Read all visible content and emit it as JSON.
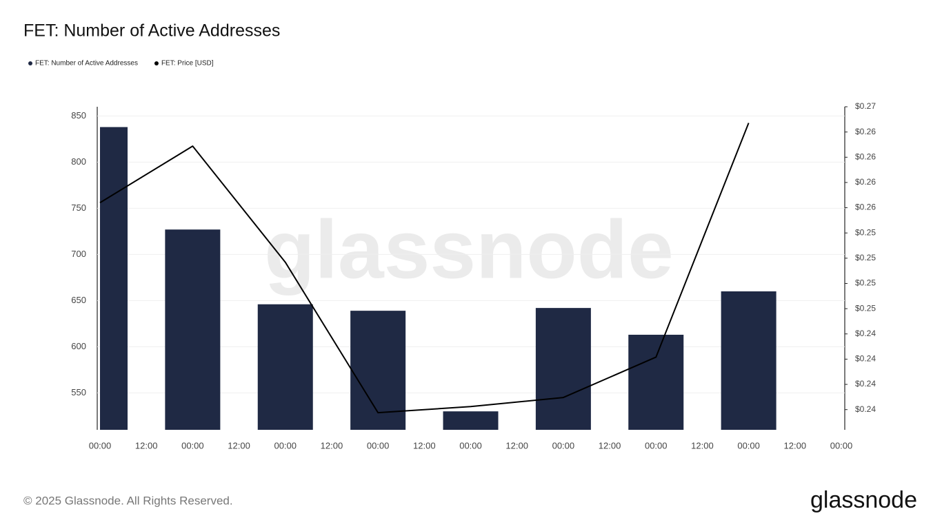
{
  "chart_data": {
    "type": "bar_line",
    "title": "FET: Number of Active Addresses",
    "watermark": "glassnode",
    "footer": "© 2025 Glassnode. All Rights Reserved.",
    "logo": "glassnode",
    "xticks": [
      "00:00",
      "12:00",
      "00:00",
      "12:00",
      "00:00",
      "12:00",
      "00:00",
      "12:00",
      "00:00",
      "12:00",
      "00:00",
      "12:00",
      "00:00",
      "12:00",
      "00:00",
      "12:00",
      "00:00"
    ],
    "series": [
      {
        "name": "FET: Number of Active Addresses",
        "type": "bar",
        "color": "#1f2944",
        "axis": "y",
        "values": [
          838,
          727,
          646,
          639,
          530,
          642,
          613,
          660
        ]
      },
      {
        "name": "FET: Price [USD]",
        "type": "line",
        "color": "#000000",
        "axis": "y2",
        "values": [
          0.2555,
          0.2611,
          0.2496,
          0.2347,
          0.2353,
          0.2362,
          0.2402,
          0.2634
        ]
      }
    ],
    "ylim": [
      510,
      860
    ],
    "yticks": [
      550,
      600,
      650,
      700,
      750,
      800,
      850
    ],
    "y2lim": [
      0.233,
      0.265
    ],
    "y2ticks": [
      {
        "value": 0.265,
        "label": "$0.27"
      },
      {
        "value": 0.2625,
        "label": "$0.26"
      },
      {
        "value": 0.26,
        "label": "$0.26"
      },
      {
        "value": 0.2575,
        "label": "$0.26"
      },
      {
        "value": 0.255,
        "label": "$0.26"
      },
      {
        "value": 0.2525,
        "label": "$0.25"
      },
      {
        "value": 0.25,
        "label": "$0.25"
      },
      {
        "value": 0.2475,
        "label": "$0.25"
      },
      {
        "value": 0.245,
        "label": "$0.25"
      },
      {
        "value": 0.2425,
        "label": "$0.24"
      },
      {
        "value": 0.24,
        "label": "$0.24"
      },
      {
        "value": 0.2375,
        "label": "$0.24"
      },
      {
        "value": 0.235,
        "label": "$0.24"
      }
    ],
    "grid": true,
    "legend": "top-left"
  }
}
